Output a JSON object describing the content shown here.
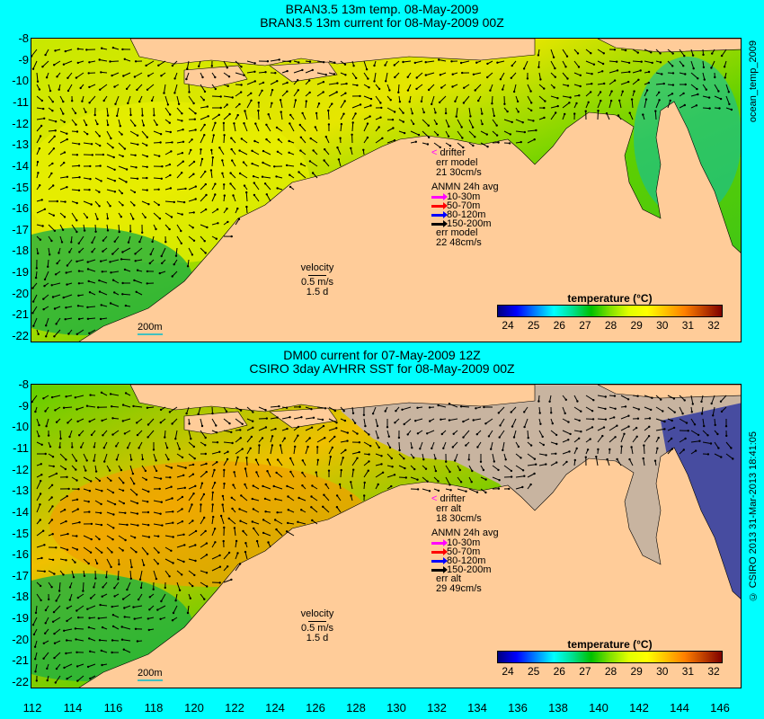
{
  "top": {
    "title_line1": "BRAN3.5 13m temp. 08-May-2009",
    "title_line2": "BRAN3.5 13m current for 08-May-2009 00Z",
    "legend": {
      "drifter": "drifter",
      "err_label": "err model",
      "err_value": "21 30cm/s",
      "anmn": "ANMN 24h avg",
      "bands": [
        "10-30m",
        "50-70m",
        "80-120m",
        "150-200m"
      ],
      "err2_label": "err model",
      "err2_value": "22 48cm/s"
    },
    "velocity": {
      "label": "velocity",
      "speed": "0.5 m/s",
      "time": "1.5 d"
    },
    "scale_label": "200m",
    "colorbar_title": "temperature (°C)",
    "side_text": "ocean_temp_2009"
  },
  "bottom": {
    "title_line1": "DM00 current for 07-May-2009 12Z",
    "title_line2": "CSIRO 3day AVHRR SST for 08-May-2009 00Z",
    "legend": {
      "drifter": "drifter",
      "err_label": "err alt",
      "err_value": "18 30cm/s",
      "anmn": "ANMN 24h avg",
      "bands": [
        "10-30m",
        "50-70m",
        "80-120m",
        "150-200m"
      ],
      "err2_label": "err alt",
      "err2_value": "29 49cm/s"
    },
    "velocity": {
      "label": "velocity",
      "speed": "0.5 m/s",
      "time": "1.5 d"
    },
    "scale_label": "200m",
    "colorbar_title": "temperature (°C)",
    "side_text": "© CSIRO 2013   31-Mar-2013 18:41:05"
  },
  "colorbar_ticks": [
    "24",
    "25",
    "26",
    "27",
    "28",
    "29",
    "30",
    "31",
    "32"
  ],
  "y_ticks": [
    "-8",
    "-9",
    "-10",
    "-11",
    "-12",
    "-13",
    "-14",
    "-15",
    "-16",
    "-17",
    "-18",
    "-19",
    "-20",
    "-21",
    "-22"
  ],
  "x_ticks": [
    "112",
    "114",
    "116",
    "118",
    "120",
    "122",
    "124",
    "126",
    "128",
    "130",
    "132",
    "134",
    "136",
    "138",
    "140",
    "142",
    "144",
    "146"
  ],
  "band_colors": [
    "#ff00ff",
    "#ff0000",
    "#0000ff",
    "#000000"
  ],
  "colors": {
    "land": "#ffcc99",
    "cloud": "#c8b4a0",
    "background": "#00ffff"
  }
}
